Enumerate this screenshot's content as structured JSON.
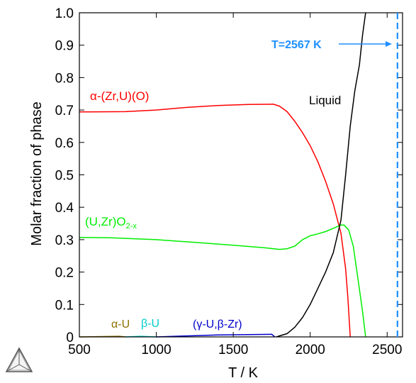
{
  "chart_data": {
    "type": "line",
    "title": "",
    "xlabel": "T / K",
    "ylabel": "Molar fraction of phase",
    "xlim": [
      500,
      2600
    ],
    "ylim": [
      0,
      1.0
    ],
    "x_ticks": [
      "500",
      "1000",
      "1500",
      "2000",
      "2500"
    ],
    "x_tick_values": [
      500,
      1000,
      1500,
      2000,
      2500
    ],
    "y_ticks": [
      "0",
      "0.1",
      "0.2",
      "0.3",
      "0.4",
      "0.5",
      "0.6",
      "0.7",
      "0.8",
      "0.9",
      "1.0"
    ],
    "y_tick_values": [
      0,
      0.1,
      0.2,
      0.3,
      0.4,
      0.5,
      0.6,
      0.7,
      0.8,
      0.9,
      1.0
    ],
    "grid": false,
    "series": [
      {
        "name": "α-(Zr,U)(O)",
        "color": "#ff0000",
        "points": [
          [
            500,
            0.694
          ],
          [
            800,
            0.695
          ],
          [
            1000,
            0.7
          ],
          [
            1200,
            0.708
          ],
          [
            1400,
            0.714
          ],
          [
            1600,
            0.717
          ],
          [
            1760,
            0.718
          ],
          [
            1800,
            0.712
          ],
          [
            1850,
            0.695
          ],
          [
            1900,
            0.665
          ],
          [
            1950,
            0.63
          ],
          [
            2000,
            0.59
          ],
          [
            2050,
            0.54
          ],
          [
            2100,
            0.48
          ],
          [
            2150,
            0.41
          ],
          [
            2200,
            0.32
          ],
          [
            2230,
            0.21
          ],
          [
            2245,
            0.12
          ],
          [
            2255,
            0.04
          ],
          [
            2260,
            0.0
          ]
        ]
      },
      {
        "name": "(U,Zr)O2-x",
        "color": "#00ee00",
        "points": [
          [
            500,
            0.307
          ],
          [
            700,
            0.306
          ],
          [
            1000,
            0.3
          ],
          [
            1300,
            0.29
          ],
          [
            1500,
            0.283
          ],
          [
            1700,
            0.275
          ],
          [
            1800,
            0.27
          ],
          [
            1850,
            0.272
          ],
          [
            1900,
            0.28
          ],
          [
            1950,
            0.3
          ],
          [
            2000,
            0.312
          ],
          [
            2050,
            0.318
          ],
          [
            2100,
            0.325
          ],
          [
            2150,
            0.335
          ],
          [
            2200,
            0.345
          ],
          [
            2220,
            0.345
          ],
          [
            2250,
            0.33
          ],
          [
            2280,
            0.28
          ],
          [
            2310,
            0.18
          ],
          [
            2340,
            0.08
          ],
          [
            2360,
            0.0
          ]
        ]
      },
      {
        "name": "Liquid",
        "color": "#000000",
        "points": [
          [
            1780,
            0.0
          ],
          [
            1800,
            0.003
          ],
          [
            1850,
            0.01
          ],
          [
            1900,
            0.03
          ],
          [
            1950,
            0.06
          ],
          [
            2000,
            0.1
          ],
          [
            2050,
            0.15
          ],
          [
            2100,
            0.2
          ],
          [
            2150,
            0.26
          ],
          [
            2200,
            0.36
          ],
          [
            2230,
            0.5
          ],
          [
            2260,
            0.65
          ],
          [
            2290,
            0.76
          ],
          [
            2320,
            0.84
          ],
          [
            2340,
            0.93
          ],
          [
            2360,
            1.0
          ]
        ]
      },
      {
        "name": "(γ-U,β-Zr)",
        "color": "#0000cc",
        "points": [
          [
            1000,
            0.0
          ],
          [
            1200,
            0.003
          ],
          [
            1400,
            0.006
          ],
          [
            1600,
            0.007
          ],
          [
            1750,
            0.008
          ],
          [
            1770,
            0.0
          ]
        ]
      },
      {
        "name": "α-U",
        "color": "#8b7000",
        "points": [
          [
            500,
            0.0
          ],
          [
            760,
            0.002
          ],
          [
            800,
            0.0
          ]
        ]
      },
      {
        "name": "β-U",
        "color": "#00cccc",
        "points": [
          [
            800,
            0.0
          ],
          [
            900,
            0.002
          ],
          [
            1000,
            0.0
          ]
        ]
      }
    ],
    "annotations": [
      {
        "text": "T=2567 K",
        "x": 2567,
        "color": "#1e90ff",
        "style": "dashed-vertical-line"
      },
      {
        "text": "α-(Zr,U)(O)",
        "color": "#ff0000"
      },
      {
        "text": "Liquid",
        "color": "#000000"
      },
      {
        "text": "(U,Zr)O",
        "sub": "2-x",
        "color": "#00ee00"
      },
      {
        "text": "α-U",
        "color": "#8b7000"
      },
      {
        "text": "β-U",
        "color": "#00cccc"
      },
      {
        "text": "(γ-U,β-Zr)",
        "color": "#0000cc"
      }
    ]
  },
  "logo": {
    "icon": "triangle-logo-icon",
    "color": "#555555"
  }
}
